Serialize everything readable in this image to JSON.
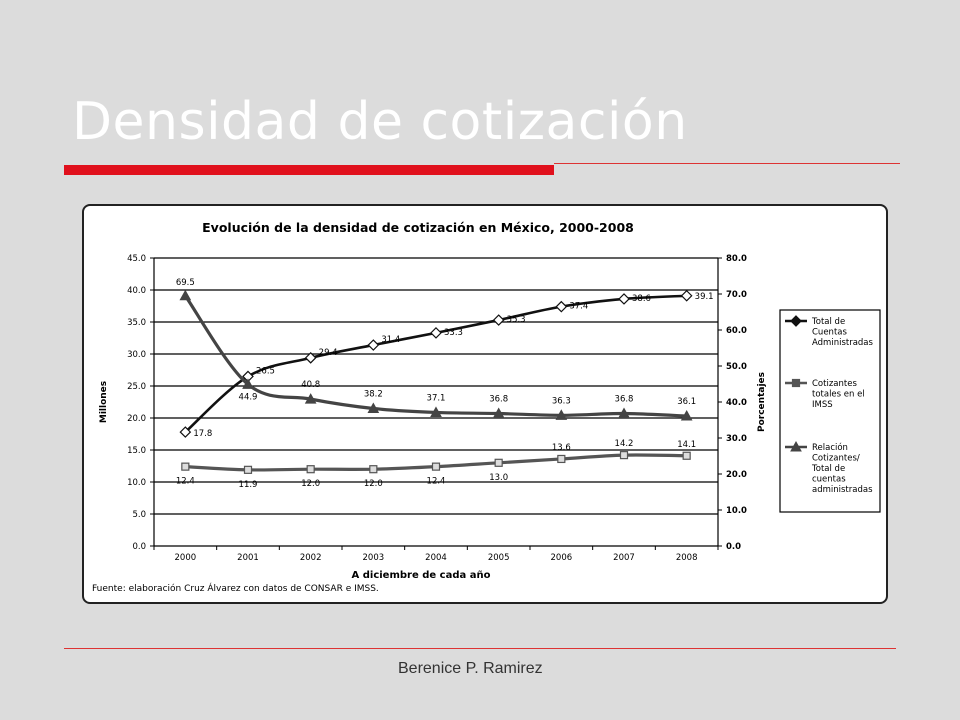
{
  "slide": {
    "title": "Densidad de cotización",
    "footer": "Berenice P. Ramirez",
    "accent_color": "#e0101c"
  },
  "chart_data": {
    "type": "line",
    "title": "Evolución de la densidad de cotización en México, 2000-2008",
    "xlabel": "A diciembre de cada año",
    "ylabel": "Millones",
    "y2label": "Porcentajes",
    "source": "Fuente: elaboración Cruz Álvarez con datos de CONSAR e IMSS.",
    "categories": [
      "2000",
      "2001",
      "2002",
      "2003",
      "2004",
      "2005",
      "2006",
      "2007",
      "2008"
    ],
    "ylim": [
      0,
      45
    ],
    "y2lim": [
      0,
      80
    ],
    "yticks": [
      "0.0",
      "5.0",
      "10.0",
      "15.0",
      "20.0",
      "25.0",
      "30.0",
      "35.0",
      "40.0",
      "45.0"
    ],
    "y2ticks": [
      "0.0",
      "10.0",
      "20.0",
      "30.0",
      "40.0",
      "50.0",
      "60.0",
      "70.0",
      "80.0"
    ],
    "grid": true,
    "legend_position": "right",
    "series": [
      {
        "name": "Total de Cuentas Administradas",
        "axis": "left",
        "marker": "diamond",
        "color": "#111111",
        "values": [
          17.8,
          26.5,
          29.4,
          31.4,
          33.3,
          35.3,
          37.4,
          38.6,
          39.1
        ],
        "labels": [
          "17.8",
          "26.5",
          "29.4",
          "31.4",
          "33.3",
          "35.3",
          "37.4",
          "38.6",
          "39.1"
        ]
      },
      {
        "name": "Cotizantes totales en el IMSS",
        "axis": "left",
        "marker": "square",
        "color": "#555555",
        "values": [
          12.4,
          11.9,
          12.0,
          12.0,
          12.4,
          13.0,
          13.6,
          14.2,
          14.1
        ],
        "labels": [
          "12.4",
          "11.9",
          "12.0",
          "12.0",
          "12.4",
          "13.0",
          "13.6",
          "14.2",
          "14.1"
        ]
      },
      {
        "name": "Relación Cotizantes/ Total de cuentas administradas",
        "axis": "right",
        "marker": "triangle",
        "color": "#444444",
        "values": [
          69.5,
          44.9,
          40.8,
          38.2,
          37.1,
          36.8,
          36.3,
          36.8,
          36.1
        ],
        "labels": [
          "69.5",
          "44.9",
          "40.8",
          "38.2",
          "37.1",
          "36.8",
          "36.3",
          "36.8",
          "36.1"
        ]
      }
    ],
    "legend_lines": [
      [
        "Total de",
        "Cuentas",
        "Administradas"
      ],
      [
        "Cotizantes",
        "totales en el",
        "IMSS"
      ],
      [
        "Relación",
        "Cotizantes/",
        "Total de",
        "cuentas",
        "administradas"
      ]
    ]
  }
}
